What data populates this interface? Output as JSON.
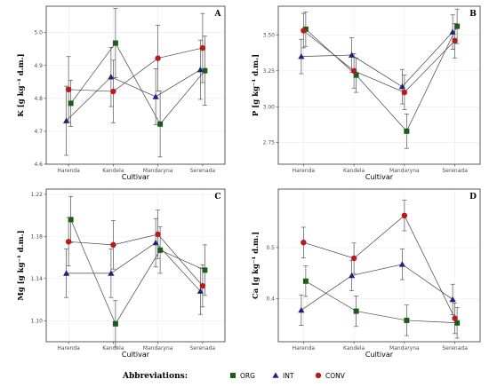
{
  "legend": {
    "title": "Abbreviations:",
    "items": [
      {
        "key": "ORG",
        "label": "ORG",
        "color": "#1a5c1a",
        "shape": "square"
      },
      {
        "key": "INT",
        "label": "INT",
        "color": "#1a237e",
        "shape": "triangle"
      },
      {
        "key": "CONV",
        "label": "CONV",
        "color": "#b71c1c",
        "shape": "circle"
      }
    ]
  },
  "chart_data": [
    {
      "panel": "A",
      "type": "scatter",
      "xlabel": "Cultivar",
      "ylabel": "K [g kg⁻¹ d.m.]",
      "categories": [
        "Harenda",
        "Kandela",
        "Mandaryna",
        "Serenada"
      ],
      "ylim": [
        4.6,
        5.08
      ],
      "yticks": [
        4.6,
        4.7,
        4.8,
        4.9,
        5.0
      ],
      "ytick_labels": [
        "4.6",
        "4.7",
        "4.8",
        "4.9",
        "5.0"
      ],
      "grid": true,
      "series": [
        {
          "key": "ORG",
          "values": [
            4.785,
            4.968,
            4.722,
            4.884
          ],
          "err": [
            0.07,
            0.105,
            0.1,
            0.105
          ]
        },
        {
          "key": "INT",
          "values": [
            4.732,
            4.865,
            4.805,
            4.887
          ],
          "err": [
            0.105,
            0.09,
            0.085,
            0.09
          ]
        },
        {
          "key": "CONV",
          "values": [
            4.827,
            4.821,
            4.922,
            4.953
          ],
          "err": [
            0.1,
            0.095,
            0.1,
            0.105
          ]
        }
      ]
    },
    {
      "panel": "B",
      "type": "scatter",
      "xlabel": "Cultivar",
      "ylabel": "P [g kg⁻¹ d.m.]",
      "categories": [
        "Harenda",
        "Kandela",
        "Mandaryna",
        "Serenada"
      ],
      "ylim": [
        2.6,
        3.7
      ],
      "yticks": [
        2.75,
        3.0,
        3.25,
        3.5
      ],
      "ytick_labels": [
        "2.75",
        "3.00",
        "3.25",
        "3.50"
      ],
      "grid": true,
      "series": [
        {
          "key": "ORG",
          "values": [
            3.54,
            3.22,
            2.83,
            3.56
          ],
          "err": [
            0.12,
            0.12,
            0.12,
            0.12
          ]
        },
        {
          "key": "INT",
          "values": [
            3.35,
            3.36,
            3.14,
            3.52
          ],
          "err": [
            0.12,
            0.12,
            0.12,
            0.12
          ]
        },
        {
          "key": "CONV",
          "values": [
            3.53,
            3.25,
            3.1,
            3.46
          ],
          "err": [
            0.12,
            0.12,
            0.12,
            0.12
          ]
        }
      ]
    },
    {
      "panel": "C",
      "type": "scatter",
      "xlabel": "Cultivar",
      "ylabel": "Mg [g kg⁻¹ d.m.]",
      "categories": [
        "Harenda",
        "Kandela",
        "Mandaryna",
        "Serenada"
      ],
      "ylim": [
        1.08,
        1.225
      ],
      "yticks": [
        1.1,
        1.14,
        1.18,
        1.22
      ],
      "ytick_labels": [
        "1.10",
        "1.14",
        "1.18",
        "1.22"
      ],
      "grid": true,
      "series": [
        {
          "key": "ORG",
          "values": [
            1.196,
            1.097,
            1.167,
            1.148
          ],
          "err": [
            0.022,
            0.022,
            0.022,
            0.024
          ]
        },
        {
          "key": "INT",
          "values": [
            1.145,
            1.145,
            1.174,
            1.128
          ],
          "err": [
            0.023,
            0.023,
            0.023,
            0.022
          ]
        },
        {
          "key": "CONV",
          "values": [
            1.175,
            1.172,
            1.182,
            1.133
          ],
          "err": [
            0.023,
            0.023,
            0.023,
            0.02
          ]
        }
      ]
    },
    {
      "panel": "D",
      "type": "scatter",
      "xlabel": "Cultivar",
      "ylabel": "Ca [g kg⁻¹ d.m.]",
      "categories": [
        "Harenda",
        "Kandela",
        "Mandaryna",
        "Serenada"
      ],
      "ylim": [
        0.315,
        0.615
      ],
      "yticks": [
        0.4,
        0.5
      ],
      "ytick_labels": [
        "0.4",
        "0.5"
      ],
      "grid": true,
      "series": [
        {
          "key": "ORG",
          "values": [
            0.434,
            0.375,
            0.357,
            0.352
          ],
          "err": [
            0.03,
            0.03,
            0.03,
            0.03
          ]
        },
        {
          "key": "INT",
          "values": [
            0.377,
            0.445,
            0.467,
            0.398
          ],
          "err": [
            0.03,
            0.03,
            0.03,
            0.03
          ]
        },
        {
          "key": "CONV",
          "values": [
            0.51,
            0.479,
            0.563,
            0.361
          ],
          "err": [
            0.03,
            0.03,
            0.03,
            0.03
          ]
        }
      ]
    }
  ]
}
